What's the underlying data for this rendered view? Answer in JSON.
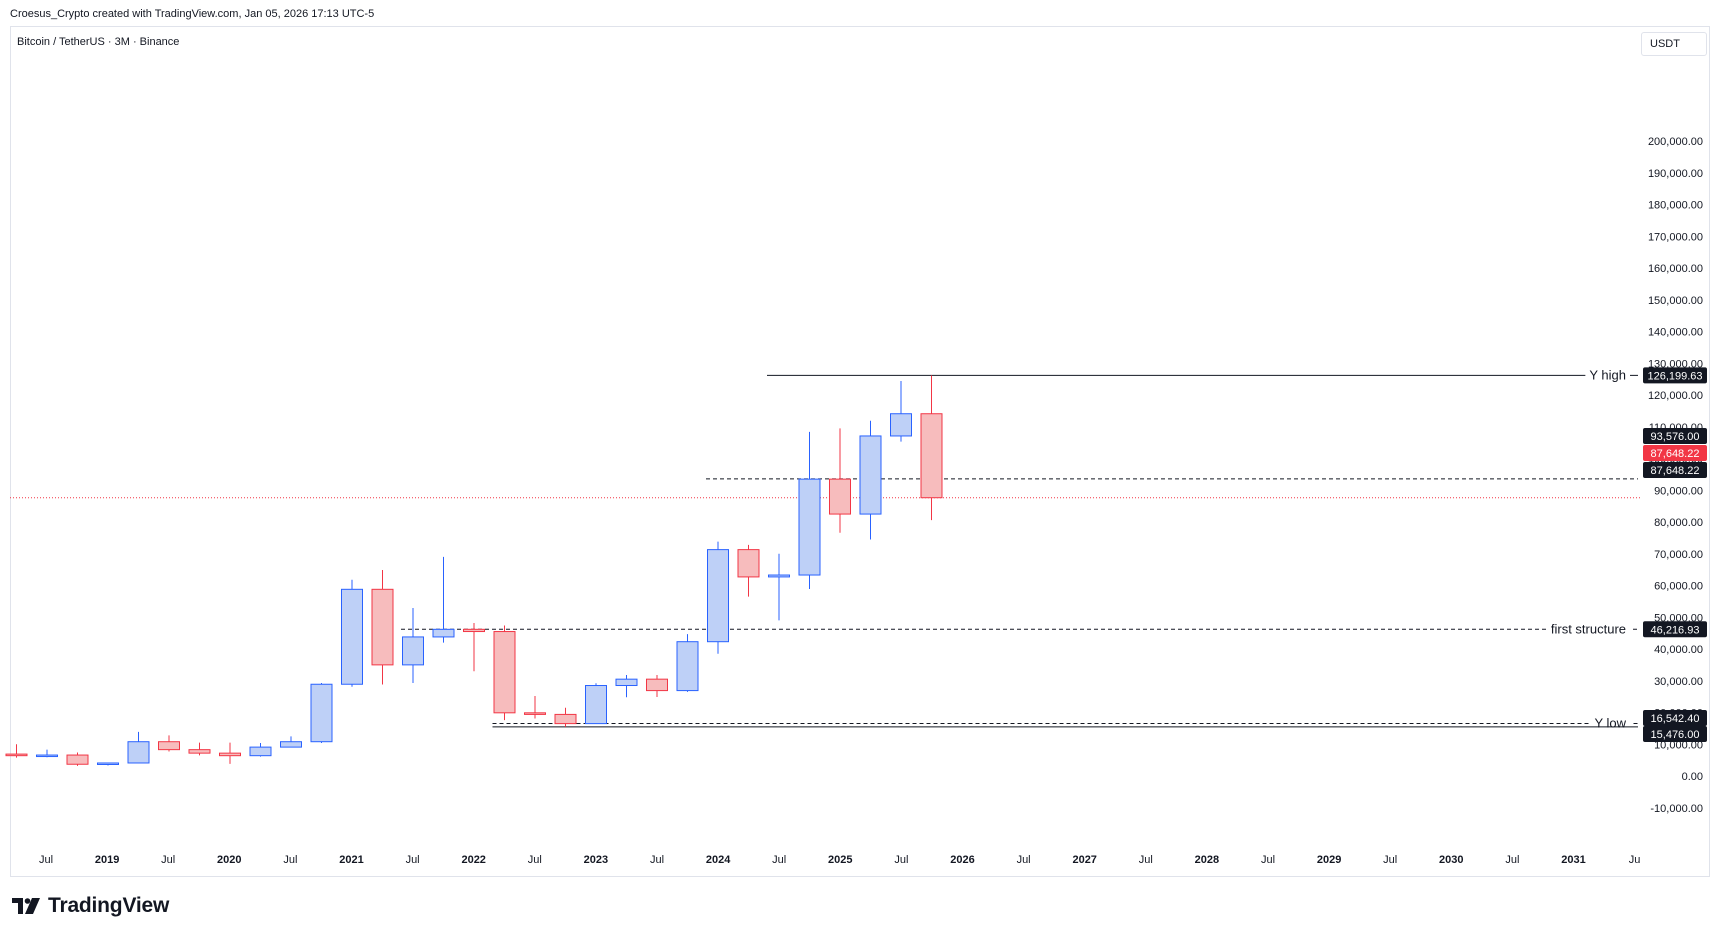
{
  "header": {
    "credit": "Croesus_Crypto created with TradingView.com, Jan 05, 2026 17:13 UTC-5",
    "symbol": "Bitcoin / TetherUS · 3M · Binance",
    "currency": "USDT"
  },
  "footer": {
    "logo_text": "TradingView"
  },
  "colors": {
    "up_fill": "#bed0f7",
    "up_stroke": "#2962ff",
    "down_fill": "#f7bcbd",
    "down_stroke": "#f23645",
    "price_line": "#f23645",
    "tag_dark": "#131722",
    "tag_red": "#f23645"
  },
  "chart_data": {
    "type": "candlestick",
    "timeframe": "3M",
    "ylim": [
      -15000,
      210000
    ],
    "y_ticks": [
      "200,000.00",
      "190,000.00",
      "180,000.00",
      "170,000.00",
      "160,000.00",
      "150,000.00",
      "140,000.00",
      "130,000.00",
      "120,000.00",
      "110,000.00",
      "100,000.00",
      "90,000.00",
      "80,000.00",
      "70,000.00",
      "60,000.00",
      "50,000.00",
      "40,000.00",
      "30,000.00",
      "20,000.00",
      "10,000.00",
      "0.00",
      "-10,000.00"
    ],
    "x_labels": [
      "Jul",
      "2019",
      "Jul",
      "2020",
      "Jul",
      "2021",
      "Jul",
      "2022",
      "Jul",
      "2023",
      "Jul",
      "2024",
      "Jul",
      "2025",
      "Jul",
      "2026",
      "Jul",
      "2027",
      "Jul",
      "2028",
      "Jul",
      "2029",
      "Jul",
      "2030",
      "Jul",
      "2031",
      "Ju"
    ],
    "candles": [
      {
        "period": "2018-Q2",
        "open": 6900,
        "high": 10000,
        "low": 5800,
        "close": 6400
      },
      {
        "period": "2018-Q3",
        "open": 6400,
        "high": 8300,
        "low": 5900,
        "close": 6600
      },
      {
        "period": "2018-Q4",
        "open": 6600,
        "high": 7400,
        "low": 3200,
        "close": 3700
      },
      {
        "period": "2019-Q1",
        "open": 3700,
        "high": 4200,
        "low": 3300,
        "close": 4100
      },
      {
        "period": "2019-Q2",
        "open": 4100,
        "high": 13900,
        "low": 4000,
        "close": 10800
      },
      {
        "period": "2019-Q3",
        "open": 10800,
        "high": 12800,
        "low": 7700,
        "close": 8300
      },
      {
        "period": "2019-Q4",
        "open": 8300,
        "high": 10500,
        "low": 6500,
        "close": 7200
      },
      {
        "period": "2020-Q1",
        "open": 7200,
        "high": 10500,
        "low": 3800,
        "close": 6400
      },
      {
        "period": "2020-Q2",
        "open": 6400,
        "high": 10400,
        "low": 6100,
        "close": 9100
      },
      {
        "period": "2020-Q3",
        "open": 9100,
        "high": 12500,
        "low": 9000,
        "close": 10800
      },
      {
        "period": "2020-Q4",
        "open": 10800,
        "high": 29300,
        "low": 10400,
        "close": 28900
      },
      {
        "period": "2021-Q1",
        "open": 28900,
        "high": 61800,
        "low": 28100,
        "close": 58800
      },
      {
        "period": "2021-Q2",
        "open": 58800,
        "high": 64900,
        "low": 28800,
        "close": 35000
      },
      {
        "period": "2021-Q3",
        "open": 35000,
        "high": 52900,
        "low": 29300,
        "close": 43800
      },
      {
        "period": "2021-Q4",
        "open": 43800,
        "high": 69000,
        "low": 42000,
        "close": 46200
      },
      {
        "period": "2022-Q1",
        "open": 46200,
        "high": 48200,
        "low": 33000,
        "close": 45500
      },
      {
        "period": "2022-Q2",
        "open": 45500,
        "high": 47400,
        "low": 17600,
        "close": 19900
      },
      {
        "period": "2022-Q3",
        "open": 19900,
        "high": 25200,
        "low": 18100,
        "close": 19400
      },
      {
        "period": "2022-Q4",
        "open": 19400,
        "high": 21500,
        "low": 15476,
        "close": 16500
      },
      {
        "period": "2023-Q1",
        "open": 16500,
        "high": 29200,
        "low": 16500,
        "close": 28500
      },
      {
        "period": "2023-Q2",
        "open": 28500,
        "high": 31800,
        "low": 24800,
        "close": 30500
      },
      {
        "period": "2023-Q3",
        "open": 30500,
        "high": 31800,
        "low": 24900,
        "close": 26900
      },
      {
        "period": "2023-Q4",
        "open": 26900,
        "high": 44700,
        "low": 26500,
        "close": 42300
      },
      {
        "period": "2024-Q1",
        "open": 42300,
        "high": 73800,
        "low": 38500,
        "close": 71300
      },
      {
        "period": "2024-Q2",
        "open": 71300,
        "high": 72800,
        "low": 56500,
        "close": 62700
      },
      {
        "period": "2024-Q3",
        "open": 62700,
        "high": 70000,
        "low": 49000,
        "close": 63300
      },
      {
        "period": "2024-Q4",
        "open": 63300,
        "high": 108400,
        "low": 58900,
        "close": 93500
      },
      {
        "period": "2025-Q1",
        "open": 93500,
        "high": 109500,
        "low": 76600,
        "close": 82500
      },
      {
        "period": "2025-Q2",
        "open": 82500,
        "high": 111900,
        "low": 74500,
        "close": 107100
      },
      {
        "period": "2025-Q3",
        "open": 107100,
        "high": 124400,
        "low": 105300,
        "close": 114100
      },
      {
        "period": "2025-Q4",
        "open": 114100,
        "high": 126199.63,
        "low": 80600,
        "close": 87648.22
      }
    ],
    "levels": [
      {
        "label": "Y high",
        "value": 126199.63,
        "value_text": "126,199.63",
        "style": "solid",
        "from_period": "2024-Q3"
      },
      {
        "label": "",
        "value": 93576.0,
        "value_text": "93,576.00",
        "style": "dashed",
        "from_period": "2024-Q1"
      },
      {
        "label": "first structure",
        "value": 46216.93,
        "value_text": "46,216.93",
        "style": "dashed",
        "from_period": "2021-Q3"
      },
      {
        "label": "Y low",
        "value": 16542.4,
        "value_text": "16,542.40",
        "style": "dashed",
        "from_period": "2022-Q2"
      },
      {
        "label": "",
        "value": 15476.0,
        "value_text": "15,476.00",
        "style": "solid",
        "from_period": "2022-Q2"
      }
    ],
    "current_price": {
      "value": 87648.22,
      "value_text": "87,648.22"
    }
  }
}
